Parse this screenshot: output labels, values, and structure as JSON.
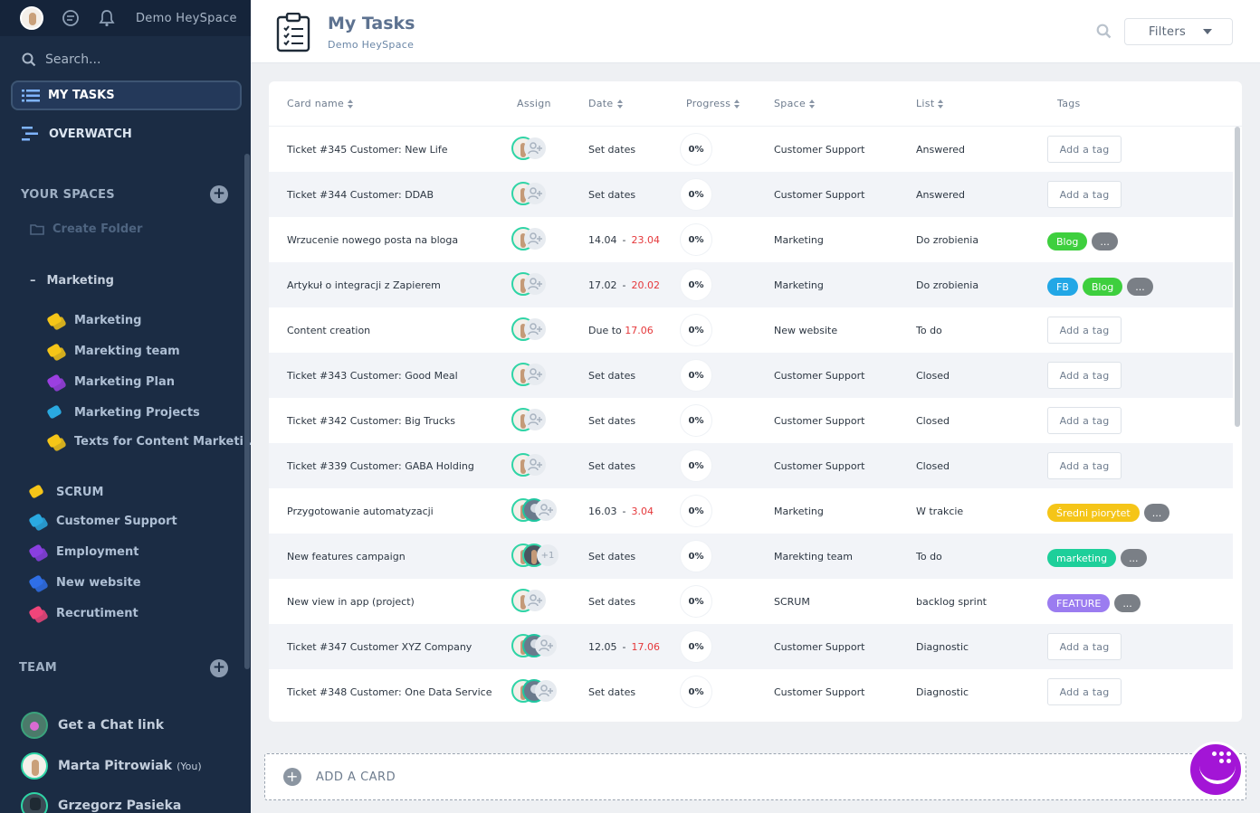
{
  "sidebar": {
    "workspace_name": "Demo HeySpace",
    "search_label": "Search...",
    "my_tasks_label": "MY TASKS",
    "overwatch_label": "OVERWATCH",
    "your_spaces_label": "YOUR SPACES",
    "create_folder_label": "Create Folder",
    "folder": {
      "name": "Marketing",
      "items": [
        {
          "label": "Marketing",
          "color": "#f5c518"
        },
        {
          "label": "Marekting team",
          "color": "#f5c518"
        },
        {
          "label": "Marketing Plan",
          "color": "#9b3fe0"
        },
        {
          "label": "Marketing Projects",
          "color": "#2aa9e0"
        },
        {
          "label": "Texts for Content Marketi...",
          "color": "#f5c518"
        }
      ]
    },
    "spaces": [
      {
        "label": "SCRUM",
        "color": "#f5c518"
      },
      {
        "label": "Customer Support",
        "color": "#2aa9e0"
      },
      {
        "label": "Employment",
        "color": "#8a3fe0"
      },
      {
        "label": "New website",
        "color": "#2f6fe6"
      },
      {
        "label": "Recrutiment",
        "color": "#f0457a"
      }
    ],
    "team_label": "TEAM",
    "team": [
      {
        "label": "Get a Chat link",
        "you": ""
      },
      {
        "label": "Marta Pitrowiak",
        "you": "(You)"
      },
      {
        "label": "Grzegorz Pasieka",
        "you": ""
      }
    ]
  },
  "header": {
    "title": "My Tasks",
    "subtitle": "Demo HeySpace",
    "filters_label": "Filters"
  },
  "table": {
    "columns": {
      "name": "Card name",
      "assign": "Assign",
      "date": "Date",
      "progress": "Progress",
      "space": "Space",
      "list": "List",
      "tags": "Tags"
    },
    "rows": [
      {
        "name": "Ticket #345 Customer: New Life",
        "date": "Set dates",
        "date_start": "",
        "date_end": "",
        "progress": "0%",
        "space": "Customer Support",
        "list": "Answered",
        "add_tag": "Add a tag",
        "tags": []
      },
      {
        "name": "Ticket #344 Customer: DDAB",
        "date": "Set dates",
        "date_start": "",
        "date_end": "",
        "progress": "0%",
        "space": "Customer Support",
        "list": "Answered",
        "add_tag": "Add a tag",
        "tags": []
      },
      {
        "name": "Wrzucenie nowego posta na bloga",
        "date": "",
        "date_start": "14.04",
        "date_end": "23.04",
        "progress": "0%",
        "space": "Marketing",
        "list": "Do zrobienia",
        "add_tag": "",
        "tags": [
          {
            "label": "Blog",
            "color": "#3ecf3e"
          },
          {
            "label": "...",
            "color": "#7a7f86"
          }
        ]
      },
      {
        "name": "Artykuł o integracji z Zapierem",
        "date": "",
        "date_start": "17.02",
        "date_end": "20.02",
        "progress": "0%",
        "space": "Marketing",
        "list": "Do zrobienia",
        "add_tag": "",
        "tags": [
          {
            "label": "FB",
            "color": "#22a7e6"
          },
          {
            "label": "Blog",
            "color": "#3ecf3e"
          },
          {
            "label": "...",
            "color": "#7a7f86"
          }
        ]
      },
      {
        "name": "Content creation",
        "date": "",
        "date_start": "Due to",
        "date_end": "17.06",
        "progress": "0%",
        "space": "New website",
        "list": "To do",
        "add_tag": "Add a tag",
        "tags": []
      },
      {
        "name": "Ticket #343 Customer: Good Meal",
        "date": "Set dates",
        "date_start": "",
        "date_end": "",
        "progress": "0%",
        "space": "Customer Support",
        "list": "Closed",
        "add_tag": "Add a tag",
        "tags": []
      },
      {
        "name": "Ticket #342 Customer: Big Trucks",
        "date": "Set dates",
        "date_start": "",
        "date_end": "",
        "progress": "0%",
        "space": "Customer Support",
        "list": "Closed",
        "add_tag": "Add a tag",
        "tags": []
      },
      {
        "name": "Ticket #339 Customer: GABA Holding",
        "date": "Set dates",
        "date_start": "",
        "date_end": "",
        "progress": "0%",
        "space": "Customer Support",
        "list": "Closed",
        "add_tag": "Add a tag",
        "tags": []
      },
      {
        "name": "Przygotowanie automatyzacji",
        "date": "",
        "date_start": "16.03",
        "date_end": "3.04",
        "progress": "0%",
        "space": "Marketing",
        "list": "W trakcie",
        "add_tag": "",
        "tags": [
          {
            "label": "Średni piorytet",
            "color": "#f5c518"
          },
          {
            "label": "...",
            "color": "#7a7f86"
          }
        ]
      },
      {
        "name": "New features campaign",
        "date": "Set dates",
        "date_start": "",
        "date_end": "",
        "progress": "0%",
        "space": "Marekting team",
        "list": "To do",
        "add_tag": "",
        "extra_assignees": "+1",
        "tags": [
          {
            "label": "marketing",
            "color": "#1ecf9a"
          },
          {
            "label": "...",
            "color": "#7a7f86"
          }
        ]
      },
      {
        "name": "New view in app (project)",
        "date": "Set dates",
        "date_start": "",
        "date_end": "",
        "progress": "0%",
        "space": "SCRUM",
        "list": "backlog sprint",
        "add_tag": "",
        "tags": [
          {
            "label": "FEATURE",
            "color": "#9b7cf0"
          },
          {
            "label": "...",
            "color": "#7a7f86"
          }
        ]
      },
      {
        "name": "Ticket #347 Customer XYZ Company",
        "date": "",
        "date_start": "12.05",
        "date_end": "17.06",
        "progress": "0%",
        "space": "Customer Support",
        "list": "Diagnostic",
        "add_tag": "Add a tag",
        "tags": []
      },
      {
        "name": "Ticket #348 Customer: One Data Service",
        "date": "Set dates",
        "date_start": "",
        "date_end": "",
        "progress": "0%",
        "space": "Customer Support",
        "list": "Diagnostic",
        "add_tag": "Add a tag",
        "tags": []
      }
    ]
  },
  "add_card_label": "ADD A CARD"
}
